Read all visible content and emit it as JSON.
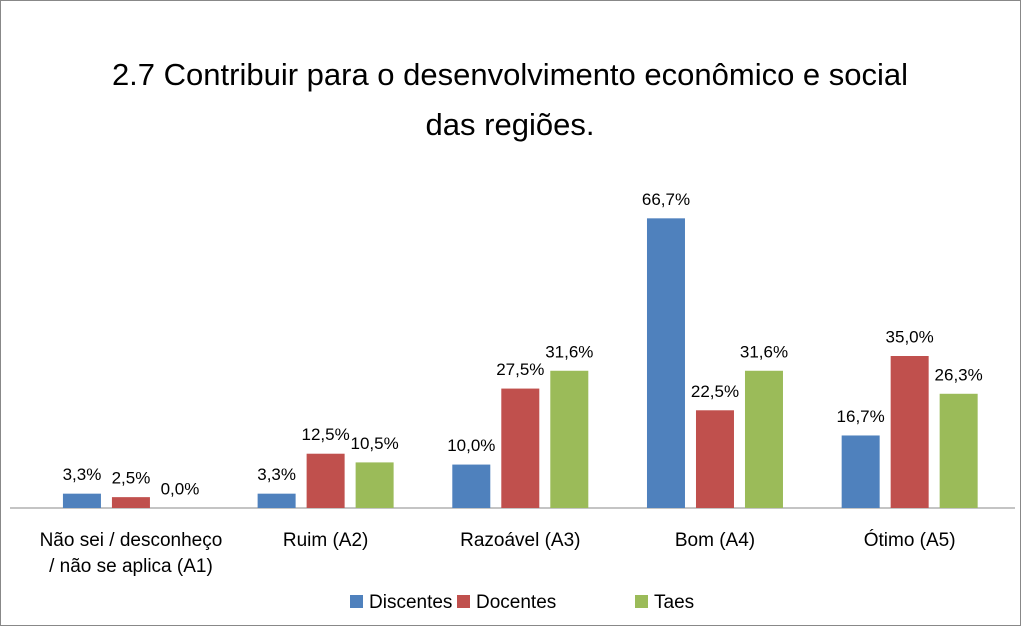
{
  "chart_data": {
    "type": "bar",
    "title": "2.7 Contribuir para o desenvolvimento econômico e social das regiões.",
    "categories": [
      "Não sei / desconheço / não se aplica (A1)",
      "Ruim (A2)",
      "Razoável (A3)",
      "Bom (A4)",
      "Ótimo (A5)"
    ],
    "series": [
      {
        "name": "Discentes",
        "color": "#4f81bd",
        "values": [
          3.3,
          3.3,
          10.0,
          66.7,
          16.7
        ],
        "value_labels": [
          "3,3%",
          "3,3%",
          "10,0%",
          "66,7%",
          "16,7%"
        ]
      },
      {
        "name": "Docentes",
        "color": "#c0504d",
        "values": [
          2.5,
          12.5,
          27.5,
          22.5,
          35.0
        ],
        "value_labels": [
          "2,5%",
          "12,5%",
          "27,5%",
          "22,5%",
          "35,0%"
        ]
      },
      {
        "name": "Taes",
        "color": "#9bbb59",
        "values": [
          0.0,
          10.5,
          31.6,
          31.6,
          26.3
        ],
        "value_labels": [
          "0,0%",
          "10,5%",
          "31,6%",
          "31,6%",
          "26,3%"
        ]
      }
    ],
    "ylim": [
      0,
      70
    ],
    "legend": "bottom"
  }
}
